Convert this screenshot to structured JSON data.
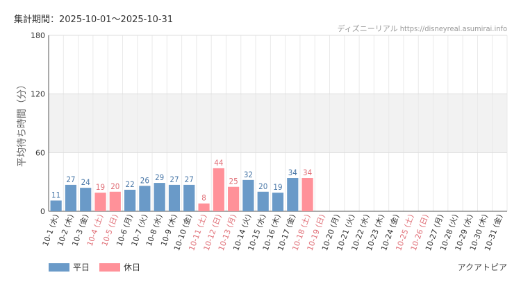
{
  "header": {
    "period_label": "集計期間：2025-10-01～2025-10-31",
    "source": "ディズニーリアル https://disneyreal.asumirai.info"
  },
  "footer": {
    "attraction": "アクアトピア"
  },
  "colors": {
    "weekday": "#6a9ac8",
    "holiday": "#ff9199",
    "weekday_text": "#4a78a8",
    "holiday_text": "#e06f77"
  },
  "chart_data": {
    "type": "bar",
    "ylabel": "平均待ち時間（分）",
    "ylim": [
      0,
      180
    ],
    "yticks": [
      0,
      60,
      120,
      180
    ],
    "legend": [
      {
        "name": "平日",
        "color": "#6a9ac8"
      },
      {
        "name": "休日",
        "color": "#ff9199"
      }
    ],
    "categories": [
      "10-1 (水)",
      "10-2 (木)",
      "10-3 (金)",
      "10-4 (土)",
      "10-5 (日)",
      "10-6 (月)",
      "10-7 (火)",
      "10-8 (水)",
      "10-9 (木)",
      "10-10 (金)",
      "10-11 (土)",
      "10-12 (日)",
      "10-13 (月)",
      "10-14 (火)",
      "10-15 (水)",
      "10-16 (木)",
      "10-17 (金)",
      "10-18 (土)",
      "10-19 (日)",
      "10-20 (月)",
      "10-21 (火)",
      "10-22 (水)",
      "10-23 (木)",
      "10-24 (金)",
      "10-25 (土)",
      "10-26 (日)",
      "10-27 (月)",
      "10-28 (火)",
      "10-29 (水)",
      "10-30 (木)",
      "10-31 (金)"
    ],
    "holiday": [
      false,
      false,
      false,
      true,
      true,
      false,
      false,
      false,
      false,
      false,
      true,
      true,
      true,
      false,
      false,
      false,
      false,
      true,
      true,
      false,
      false,
      false,
      false,
      false,
      true,
      true,
      false,
      false,
      false,
      false,
      false
    ],
    "values": [
      11,
      27,
      24,
      19,
      20,
      22,
      26,
      29,
      27,
      27,
      8,
      44,
      25,
      32,
      20,
      19,
      34,
      34,
      null,
      null,
      null,
      null,
      null,
      null,
      null,
      null,
      null,
      null,
      null,
      null,
      null
    ]
  }
}
